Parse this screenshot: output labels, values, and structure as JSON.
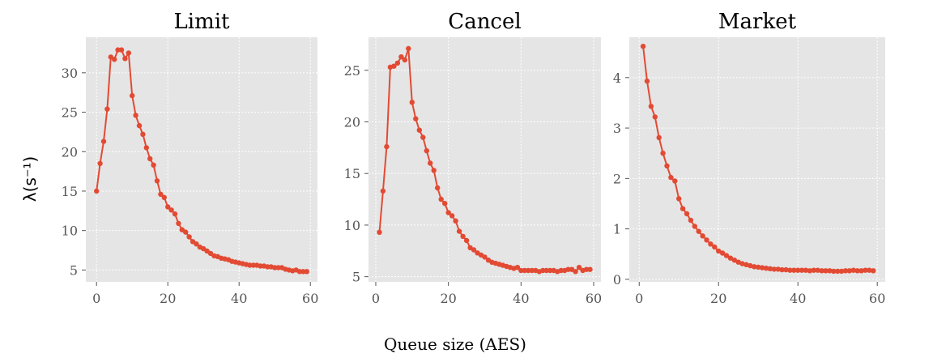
{
  "figure": {
    "xlabel": "Queue size (AES)",
    "ylabel": "λ(s⁻¹)",
    "line_color": "#E24A33",
    "panel_bg": "#E5E5E5",
    "grid_color": "#FFFFFF"
  },
  "chart_data": [
    {
      "type": "line",
      "title": "Limit",
      "xlim": [
        -3,
        62
      ],
      "ylim": [
        3.5,
        34.5
      ],
      "xticks": [
        0,
        20,
        40,
        60
      ],
      "yticks": [
        5,
        10,
        15,
        20,
        25,
        30
      ],
      "grid": true,
      "x": [
        0,
        1,
        2,
        3,
        4,
        5,
        6,
        7,
        8,
        9,
        10,
        11,
        12,
        13,
        14,
        15,
        16,
        17,
        18,
        19,
        20,
        21,
        22,
        23,
        24,
        25,
        26,
        27,
        28,
        29,
        30,
        31,
        32,
        33,
        34,
        35,
        36,
        37,
        38,
        39,
        40,
        41,
        42,
        43,
        44,
        45,
        46,
        47,
        48,
        49,
        50,
        51,
        52,
        53,
        54,
        55,
        56,
        57,
        58,
        59
      ],
      "y": [
        15.0,
        18.5,
        21.3,
        25.4,
        32.0,
        31.7,
        32.9,
        32.9,
        31.8,
        32.5,
        27.1,
        24.6,
        23.3,
        22.2,
        20.5,
        19.1,
        18.3,
        16.3,
        14.6,
        14.2,
        13.0,
        12.6,
        12.1,
        10.9,
        10.1,
        9.8,
        9.2,
        8.6,
        8.3,
        7.9,
        7.7,
        7.4,
        7.1,
        6.8,
        6.7,
        6.5,
        6.4,
        6.3,
        6.1,
        6.0,
        5.9,
        5.8,
        5.7,
        5.6,
        5.6,
        5.6,
        5.5,
        5.5,
        5.4,
        5.4,
        5.3,
        5.3,
        5.3,
        5.1,
        5.0,
        4.9,
        5.0,
        4.8,
        4.8,
        4.8
      ]
    },
    {
      "type": "line",
      "title": "Cancel",
      "xlim": [
        -2,
        62
      ],
      "ylim": [
        4.5,
        28.2
      ],
      "xticks": [
        0,
        20,
        40,
        60
      ],
      "yticks": [
        5,
        10,
        15,
        20,
        25
      ],
      "grid": true,
      "x": [
        1,
        2,
        3,
        4,
        5,
        6,
        7,
        8,
        9,
        10,
        11,
        12,
        13,
        14,
        15,
        16,
        17,
        18,
        19,
        20,
        21,
        22,
        23,
        24,
        25,
        26,
        27,
        28,
        29,
        30,
        31,
        32,
        33,
        34,
        35,
        36,
        37,
        38,
        39,
        40,
        41,
        42,
        43,
        44,
        45,
        46,
        47,
        48,
        49,
        50,
        51,
        52,
        53,
        54,
        55,
        56,
        57,
        58,
        59
      ],
      "y": [
        9.3,
        13.3,
        17.6,
        25.3,
        25.4,
        25.7,
        26.3,
        26.0,
        27.1,
        21.9,
        20.3,
        19.2,
        18.5,
        17.2,
        16.0,
        15.3,
        13.6,
        12.5,
        12.1,
        11.2,
        10.9,
        10.4,
        9.4,
        8.9,
        8.5,
        7.8,
        7.6,
        7.3,
        7.1,
        6.9,
        6.6,
        6.4,
        6.3,
        6.2,
        6.1,
        6.0,
        5.9,
        5.8,
        5.9,
        5.6,
        5.6,
        5.6,
        5.6,
        5.6,
        5.5,
        5.6,
        5.6,
        5.6,
        5.6,
        5.5,
        5.6,
        5.6,
        5.7,
        5.7,
        5.5,
        5.9,
        5.6,
        5.7,
        5.7
      ]
    },
    {
      "type": "line",
      "title": "Market",
      "xlim": [
        -2.5,
        62
      ],
      "ylim": [
        -0.05,
        4.8
      ],
      "xticks": [
        0,
        20,
        40,
        60
      ],
      "yticks": [
        0,
        1,
        2,
        3,
        4
      ],
      "grid": true,
      "x": [
        1,
        2,
        3,
        4,
        5,
        6,
        7,
        8,
        9,
        10,
        11,
        12,
        13,
        14,
        15,
        16,
        17,
        18,
        19,
        20,
        21,
        22,
        23,
        24,
        25,
        26,
        27,
        28,
        29,
        30,
        31,
        32,
        33,
        34,
        35,
        36,
        37,
        38,
        39,
        40,
        41,
        42,
        43,
        44,
        45,
        46,
        47,
        48,
        49,
        50,
        51,
        52,
        53,
        54,
        55,
        56,
        57,
        58,
        59
      ],
      "y": [
        4.62,
        3.93,
        3.43,
        3.22,
        2.81,
        2.5,
        2.25,
        2.02,
        1.95,
        1.6,
        1.4,
        1.3,
        1.17,
        1.05,
        0.95,
        0.86,
        0.78,
        0.7,
        0.64,
        0.56,
        0.52,
        0.47,
        0.42,
        0.38,
        0.34,
        0.31,
        0.29,
        0.27,
        0.25,
        0.24,
        0.23,
        0.22,
        0.21,
        0.2,
        0.2,
        0.19,
        0.19,
        0.18,
        0.18,
        0.18,
        0.18,
        0.18,
        0.17,
        0.18,
        0.18,
        0.17,
        0.17,
        0.17,
        0.16,
        0.16,
        0.16,
        0.17,
        0.17,
        0.18,
        0.17,
        0.17,
        0.18,
        0.18,
        0.17
      ]
    }
  ]
}
